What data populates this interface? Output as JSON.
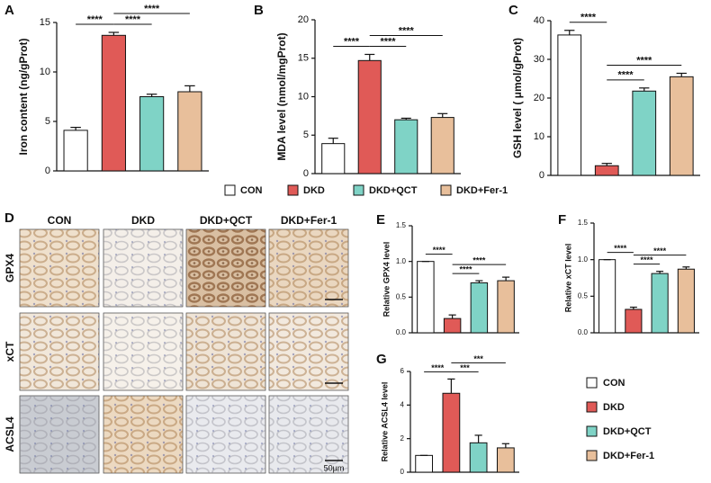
{
  "chart_data": [
    {
      "type": "bar",
      "panel": "A",
      "ylabel": "Iron content (ng/gProt)",
      "categories": [
        "CON",
        "DKD",
        "DKD+QCT",
        "DKD+Fer-1"
      ],
      "colors": [
        "#ffffff",
        "#e05a57",
        "#7fd3c6",
        "#e8bf9b"
      ],
      "values": [
        4.1,
        13.7,
        7.5,
        8.0
      ],
      "errors": [
        0.3,
        0.3,
        0.25,
        0.6
      ],
      "ylim": [
        0,
        15
      ],
      "yticks": [
        0,
        5,
        10,
        15
      ],
      "annotations": [
        {
          "from": 0,
          "to": 1,
          "text": "****"
        },
        {
          "from": 1,
          "to": 2,
          "text": "****"
        },
        {
          "from": 1,
          "to": 3,
          "text": "****"
        }
      ]
    },
    {
      "type": "bar",
      "panel": "B",
      "ylabel": "MDA level (nmol/mgProt)",
      "categories": [
        "CON",
        "DKD",
        "DKD+QCT",
        "DKD+Fer-1"
      ],
      "colors": [
        "#ffffff",
        "#e05a57",
        "#7fd3c6",
        "#e8bf9b"
      ],
      "values": [
        3.9,
        14.7,
        7.0,
        7.3
      ],
      "errors": [
        0.7,
        0.8,
        0.2,
        0.5
      ],
      "ylim": [
        0,
        20
      ],
      "yticks": [
        0,
        5,
        10,
        15,
        20
      ],
      "annotations": [
        {
          "from": 0,
          "to": 1,
          "text": "****"
        },
        {
          "from": 1,
          "to": 2,
          "text": "****"
        },
        {
          "from": 1,
          "to": 3,
          "text": "****"
        }
      ]
    },
    {
      "type": "bar",
      "panel": "C",
      "ylabel": "GSH level ( μmol/gProt)",
      "categories": [
        "CON",
        "DKD",
        "DKD+QCT",
        "DKD+Fer-1"
      ],
      "colors": [
        "#ffffff",
        "#e05a57",
        "#7fd3c6",
        "#e8bf9b"
      ],
      "values": [
        36.3,
        2.5,
        21.8,
        25.5
      ],
      "errors": [
        1.2,
        0.6,
        0.8,
        0.9
      ],
      "ylim": [
        0,
        40
      ],
      "yticks": [
        0,
        10,
        20,
        30,
        40
      ],
      "annotations": [
        {
          "from": 0,
          "to": 1,
          "text": "****"
        },
        {
          "from": 1,
          "to": 2,
          "text": "****"
        },
        {
          "from": 1,
          "to": 3,
          "text": "****"
        }
      ]
    },
    {
      "type": "bar",
      "panel": "E",
      "ylabel": "Relative GPX4 level",
      "categories": [
        "CON",
        "DKD",
        "DKD+QCT",
        "DKD+Fer-1"
      ],
      "colors": [
        "#ffffff",
        "#e05a57",
        "#7fd3c6",
        "#e8bf9b"
      ],
      "values": [
        1.0,
        0.2,
        0.7,
        0.73
      ],
      "errors": [
        0,
        0.05,
        0.03,
        0.05
      ],
      "ylim": [
        0,
        1.5
      ],
      "yticks": [
        {
          "value": 0,
          "label": "0.0"
        },
        0.5,
        {
          "value": 1,
          "label": "1.0"
        },
        1.5
      ],
      "annotations": [
        {
          "from": 0,
          "to": 1,
          "text": "****"
        },
        {
          "from": 1,
          "to": 2,
          "text": "****"
        },
        {
          "from": 1,
          "to": 3,
          "text": "****"
        }
      ]
    },
    {
      "type": "bar",
      "panel": "F",
      "ylabel": "Relative xCT level",
      "categories": [
        "CON",
        "DKD",
        "DKD+QCT",
        "DKD+Fer-1"
      ],
      "colors": [
        "#ffffff",
        "#e05a57",
        "#7fd3c6",
        "#e8bf9b"
      ],
      "values": [
        1.0,
        0.32,
        0.81,
        0.87
      ],
      "errors": [
        0,
        0.03,
        0.03,
        0.03
      ],
      "ylim": [
        0,
        1.5
      ],
      "yticks": [
        {
          "value": 0,
          "label": "0.0"
        },
        0.5,
        {
          "value": 1,
          "label": "1.0"
        },
        1.5
      ],
      "annotations": [
        {
          "from": 0,
          "to": 1,
          "text": "****"
        },
        {
          "from": 1,
          "to": 2,
          "text": "****"
        },
        {
          "from": 1,
          "to": 3,
          "text": "****"
        }
      ]
    },
    {
      "type": "bar",
      "panel": "G",
      "ylabel": "Relative ACSL4 level",
      "categories": [
        "CON",
        "DKD",
        "DKD+QCT",
        "DKD+Fer-1"
      ],
      "colors": [
        "#ffffff",
        "#e05a57",
        "#7fd3c6",
        "#e8bf9b"
      ],
      "values": [
        1.0,
        4.7,
        1.75,
        1.45
      ],
      "errors": [
        0,
        0.85,
        0.45,
        0.25
      ],
      "ylim": [
        0,
        6
      ],
      "yticks": [
        0,
        2,
        4,
        6
      ],
      "annotations": [
        {
          "from": 0,
          "to": 1,
          "text": "****"
        },
        {
          "from": 1,
          "to": 2,
          "text": "***"
        },
        {
          "from": 1,
          "to": 3,
          "text": "***"
        }
      ]
    }
  ],
  "legend": [
    {
      "name": "CON",
      "color": "#ffffff"
    },
    {
      "name": "DKD",
      "color": "#e05a57"
    },
    {
      "name": "DKD+QCT",
      "color": "#7fd3c6"
    },
    {
      "name": "DKD+Fer-1",
      "color": "#e8bf9b"
    }
  ],
  "ihc": {
    "panel": "D",
    "columns": [
      "CON",
      "DKD",
      "DKD+QCT",
      "DKD+Fer-1"
    ],
    "rows": [
      "GPX4",
      "xCT",
      "ACSL4"
    ],
    "scale_bar": "50μm"
  }
}
